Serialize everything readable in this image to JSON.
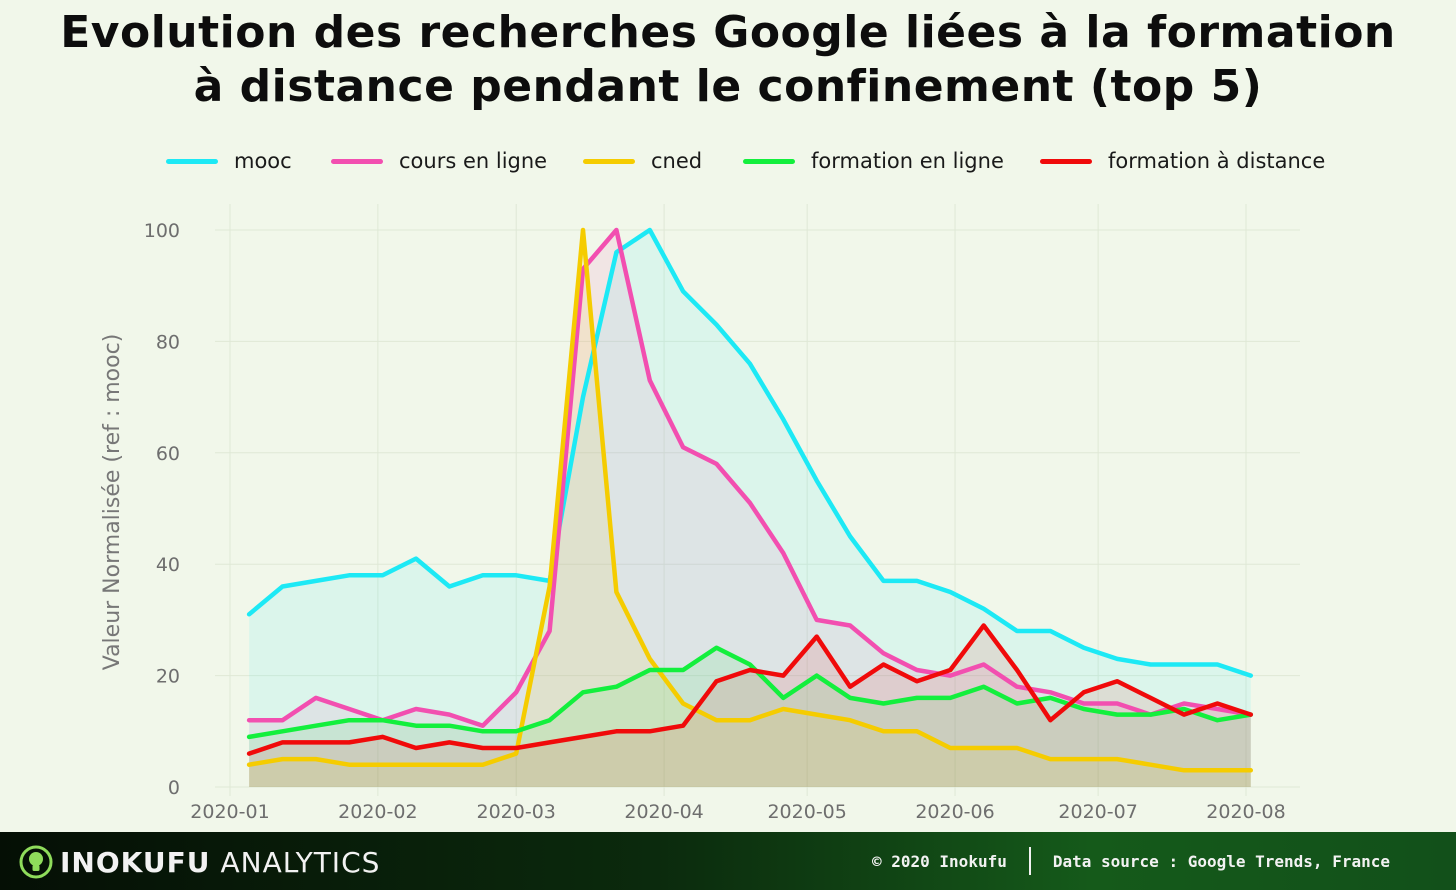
{
  "title_lines": [
    "Evolution des recherches Google liées à la formation",
    "à distance pendant le confinement (top 5)"
  ],
  "footer": {
    "brand_name": "INOKUFU",
    "brand_sub": "ANALYTICS",
    "copyright": "© 2020 Inokufu",
    "source": "Data source : Google Trends, France"
  },
  "chart_data": {
    "type": "area",
    "title": "Evolution des recherches Google liées à la formation à distance pendant le confinement (top 5)",
    "xlabel": "",
    "ylabel": "Valeur Normalisée  (ref : mooc)",
    "ylim": [
      0,
      100
    ],
    "yticks": [
      "0",
      "20",
      "40",
      "60",
      "80",
      "100"
    ],
    "xticks": [
      "2020-01",
      "2020-02",
      "2020-03",
      "2020-04",
      "2020-05",
      "2020-06",
      "2020-07",
      "2020-08"
    ],
    "x": [
      "2020-01-05",
      "2020-01-12",
      "2020-01-19",
      "2020-01-26",
      "2020-02-02",
      "2020-02-09",
      "2020-02-16",
      "2020-02-23",
      "2020-03-01",
      "2020-03-08",
      "2020-03-15",
      "2020-03-22",
      "2020-03-29",
      "2020-04-05",
      "2020-04-12",
      "2020-04-19",
      "2020-04-26",
      "2020-05-03",
      "2020-05-10",
      "2020-05-17",
      "2020-05-24",
      "2020-05-31",
      "2020-06-07",
      "2020-06-14",
      "2020-06-21",
      "2020-06-28",
      "2020-07-05",
      "2020-07-12",
      "2020-07-19",
      "2020-07-26",
      "2020-08-02"
    ],
    "series": [
      {
        "name": "mooc",
        "color": "#1de9f5",
        "values": [
          31,
          36,
          37,
          38,
          38,
          41,
          36,
          38,
          38,
          37,
          70,
          96,
          100,
          89,
          83,
          76,
          66,
          55,
          45,
          37,
          37,
          35,
          32,
          28,
          28,
          25,
          23,
          22,
          22,
          22,
          20
        ]
      },
      {
        "name": "cours en ligne",
        "color": "#f24fb0",
        "values": [
          12,
          12,
          16,
          14,
          12,
          14,
          13,
          11,
          17,
          28,
          93,
          100,
          73,
          61,
          58,
          51,
          42,
          30,
          29,
          24,
          21,
          20,
          22,
          18,
          17,
          15,
          15,
          13,
          15,
          14,
          13
        ]
      },
      {
        "name": "cned",
        "color": "#f5cc00",
        "values": [
          4,
          5,
          5,
          4,
          4,
          4,
          4,
          4,
          6,
          36,
          100,
          35,
          23,
          15,
          12,
          12,
          14,
          13,
          12,
          10,
          10,
          7,
          7,
          7,
          5,
          5,
          5,
          4,
          3,
          3,
          3
        ]
      },
      {
        "name": "formation en ligne",
        "color": "#13ef3d",
        "values": [
          9,
          10,
          11,
          12,
          12,
          11,
          11,
          10,
          10,
          12,
          17,
          18,
          21,
          21,
          25,
          22,
          16,
          20,
          16,
          15,
          16,
          16,
          18,
          15,
          16,
          14,
          13,
          13,
          14,
          12,
          13
        ]
      },
      {
        "name": "formation à distance",
        "color": "#f00a0a",
        "values": [
          6,
          8,
          8,
          8,
          9,
          7,
          8,
          7,
          7,
          8,
          9,
          10,
          10,
          11,
          19,
          21,
          20,
          27,
          18,
          22,
          19,
          21,
          29,
          21,
          12,
          17,
          19,
          16,
          13,
          15,
          13
        ]
      }
    ]
  }
}
